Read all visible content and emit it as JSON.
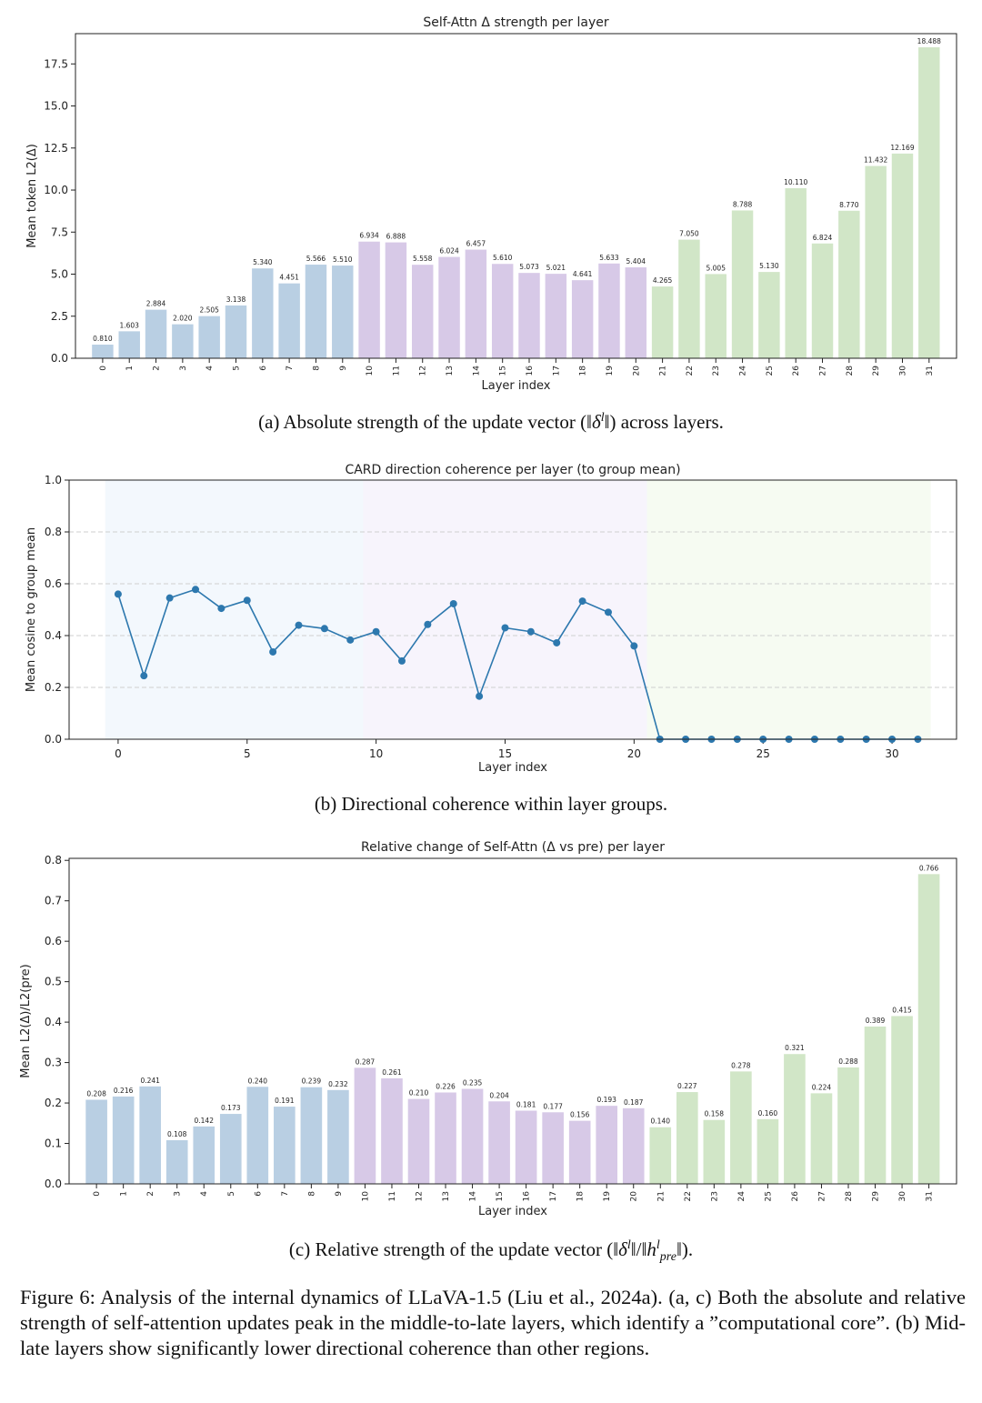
{
  "chart_data": [
    {
      "type": "bar",
      "title": "Self-Attn Δ strength per layer",
      "xlabel": "Layer index",
      "ylabel": "Mean token L2(Δ)",
      "ylim": [
        0,
        19.3
      ],
      "yticks": [
        "0.0",
        "2.5",
        "5.0",
        "7.5",
        "10.0",
        "12.5",
        "15.0",
        "17.5"
      ],
      "categories": [
        "0",
        "1",
        "2",
        "3",
        "4",
        "5",
        "6",
        "7",
        "8",
        "9",
        "10",
        "11",
        "12",
        "13",
        "14",
        "15",
        "16",
        "17",
        "18",
        "19",
        "20",
        "21",
        "22",
        "23",
        "24",
        "25",
        "26",
        "27",
        "28",
        "29",
        "30",
        "31"
      ],
      "values": [
        0.81,
        1.603,
        2.884,
        2.02,
        2.505,
        3.138,
        5.34,
        4.451,
        5.566,
        5.51,
        6.934,
        6.888,
        5.558,
        6.024,
        6.457,
        5.61,
        5.073,
        5.021,
        4.641,
        5.633,
        5.404,
        4.265,
        7.05,
        5.005,
        8.788,
        5.13,
        10.11,
        6.824,
        8.77,
        11.432,
        12.169,
        18.488
      ],
      "labels": [
        "0.810",
        "1.603",
        "2.884",
        "2.020",
        "2.505",
        "3.138",
        "5.340",
        "4.451",
        "5.566",
        "5.510",
        "6.934",
        "6.888",
        "5.558",
        "6.024",
        "6.457",
        "5.610",
        "5.073",
        "5.021",
        "4.641",
        "5.633",
        "5.404",
        "4.265",
        "7.050",
        "5.005",
        "8.788",
        "5.130",
        "10.110",
        "6.824",
        "8.770",
        "11.432",
        "12.169",
        "18.488"
      ],
      "group_colors": [
        "#b9cfe3",
        "#d7c9e7",
        "#d1e6c7"
      ],
      "group_ends": [
        9,
        20,
        31
      ]
    },
    {
      "type": "line",
      "title": "CARD direction coherence per layer (to group mean)",
      "xlabel": "Layer index",
      "ylabel": "Mean cosine to group mean",
      "ylim": [
        0,
        1.0
      ],
      "xlim": [
        -1.9,
        32.5
      ],
      "yticks": [
        "0.0",
        "0.2",
        "0.4",
        "0.6",
        "0.8",
        "1.0"
      ],
      "xticks": [
        "0",
        "5",
        "10",
        "15",
        "20",
        "25",
        "30"
      ],
      "grid": "horizontal dashed",
      "line_color": "#2d78ae",
      "band_colors": [
        "#f3f8fd",
        "#f7f4fc",
        "#f6fbf2"
      ],
      "x": [
        0,
        1,
        2,
        3,
        4,
        5,
        6,
        7,
        8,
        9,
        10,
        11,
        12,
        13,
        14,
        15,
        16,
        17,
        18,
        19,
        20,
        21,
        22,
        23,
        24,
        25,
        26,
        27,
        28,
        29,
        30,
        31
      ],
      "values": [
        0.56,
        0.245,
        0.545,
        0.578,
        0.505,
        0.536,
        0.337,
        0.44,
        0.427,
        0.383,
        0.415,
        0.302,
        0.443,
        0.523,
        0.166,
        0.43,
        0.415,
        0.372,
        0.533,
        0.49,
        0.36,
        0,
        0,
        0,
        0,
        0,
        0,
        0,
        0,
        0,
        0,
        0
      ]
    },
    {
      "type": "bar",
      "title": "Relative change of Self-Attn (Δ vs pre) per layer",
      "xlabel": "Layer index",
      "ylabel": "Mean L2(Δ)/L2(pre)",
      "ylim": [
        0,
        0.805
      ],
      "yticks": [
        "0.0",
        "0.1",
        "0.2",
        "0.3",
        "0.4",
        "0.5",
        "0.6",
        "0.7",
        "0.8"
      ],
      "categories": [
        "0",
        "1",
        "2",
        "3",
        "4",
        "5",
        "6",
        "7",
        "8",
        "9",
        "10",
        "11",
        "12",
        "13",
        "14",
        "15",
        "16",
        "17",
        "18",
        "19",
        "20",
        "21",
        "22",
        "23",
        "24",
        "25",
        "26",
        "27",
        "28",
        "29",
        "30",
        "31"
      ],
      "values": [
        0.208,
        0.216,
        0.241,
        0.108,
        0.142,
        0.173,
        0.24,
        0.191,
        0.239,
        0.232,
        0.287,
        0.261,
        0.21,
        0.226,
        0.235,
        0.204,
        0.181,
        0.177,
        0.156,
        0.193,
        0.187,
        0.14,
        0.227,
        0.158,
        0.278,
        0.16,
        0.321,
        0.224,
        0.288,
        0.389,
        0.415,
        0.766
      ],
      "labels": [
        "0.208",
        "0.216",
        "0.241",
        "0.108",
        "0.142",
        "0.173",
        "0.240",
        "0.191",
        "0.239",
        "0.232",
        "0.287",
        "0.261",
        "0.210",
        "0.226",
        "0.235",
        "0.204",
        "0.181",
        "0.177",
        "0.156",
        "0.193",
        "0.187",
        "0.140",
        "0.227",
        "0.158",
        "0.278",
        "0.160",
        "0.321",
        "0.224",
        "0.288",
        "0.389",
        "0.415",
        "0.766"
      ],
      "group_colors": [
        "#b9cfe3",
        "#d7c9e7",
        "#d1e6c7"
      ],
      "group_ends": [
        9,
        20,
        31
      ]
    }
  ],
  "captions": {
    "a_prefix": "(a) Absolute strength of the update vector (‖",
    "a_delta": "δ",
    "a_sup": "l",
    "a_suffix": "‖) across layers.",
    "b": "(b) Directional coherence within layer groups.",
    "c_prefix": "(c) Relative strength of the update vector (‖",
    "c_delta": "δ",
    "c_sup": "l",
    "c_mid": "‖/‖",
    "c_h": "h",
    "c_hsup": "l",
    "c_hsub": "pre",
    "c_suffix": "‖)."
  },
  "figure_caption": "Figure 6: Analysis of the internal dynamics of LLaVA-1.5 (Liu et al., 2024a). (a, c) Both the absolute and relative strength of self-attention updates peak in the middle-to-late layers, which identify a ”computational core”. (b) Mid-late layers show significantly lower directional coherence than other regions."
}
